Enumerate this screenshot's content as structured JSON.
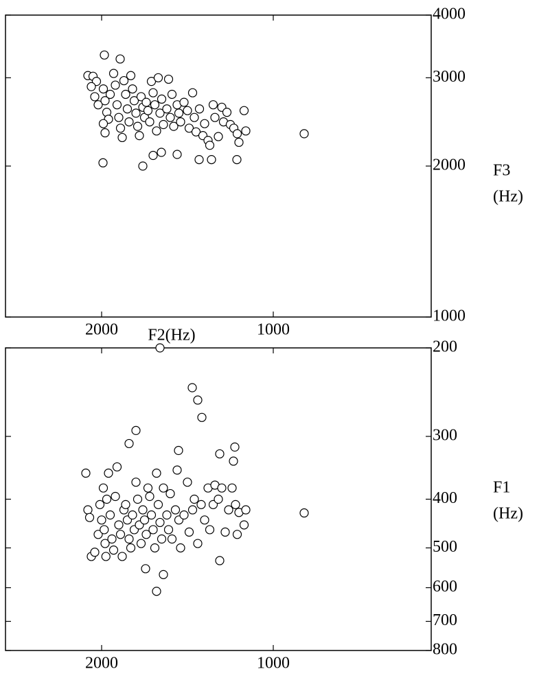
{
  "chart_data": [
    {
      "type": "scatter",
      "x_label": "F2(Hz)",
      "y_label": [
        "F3",
        "(Hz)"
      ],
      "y_log": true,
      "xlim": [
        2560,
        80
      ],
      "xticks": [
        2000,
        1000
      ],
      "ylim": [
        1000,
        4000
      ],
      "yticks": [
        1000,
        2000,
        3000,
        4000
      ],
      "x": [
        2080,
        2050,
        2030,
        2060,
        2040,
        2020,
        1990,
        1980,
        1970,
        1960,
        1990,
        1980,
        1950,
        1930,
        1920,
        1910,
        1900,
        1890,
        1880,
        1870,
        1860,
        1850,
        1840,
        1830,
        1820,
        1810,
        1800,
        1790,
        1780,
        1770,
        1760,
        1750,
        1740,
        1730,
        1720,
        1710,
        1700,
        1690,
        1680,
        1670,
        1660,
        1650,
        1640,
        1620,
        1610,
        1600,
        1590,
        1580,
        1560,
        1550,
        1540,
        1520,
        1500,
        1490,
        1470,
        1460,
        1450,
        1430,
        1410,
        1400,
        1380,
        1370,
        1350,
        1340,
        1320,
        1300,
        1290,
        1270,
        1250,
        1230,
        1210,
        1200,
        1170,
        1160,
        1984,
        1892,
        820,
        1992,
        1760,
        1212,
        1432,
        1360,
        1560,
        1652,
        1700
      ],
      "y": [
        3030,
        3020,
        2950,
        2880,
        2750,
        2650,
        2850,
        2700,
        2560,
        2480,
        2430,
        2330,
        2780,
        3060,
        2900,
        2650,
        2500,
        2380,
        2280,
        2960,
        2780,
        2600,
        2450,
        3030,
        2850,
        2700,
        2550,
        2400,
        2300,
        2750,
        2620,
        2500,
        2680,
        2580,
        2450,
        2950,
        2800,
        2650,
        2350,
        3000,
        2550,
        2720,
        2420,
        2600,
        2980,
        2500,
        2780,
        2400,
        2650,
        2550,
        2450,
        2680,
        2580,
        2380,
        2800,
        2500,
        2340,
        2600,
        2300,
        2430,
        2250,
        2200,
        2650,
        2500,
        2290,
        2620,
        2450,
        2560,
        2420,
        2380,
        2320,
        2230,
        2580,
        2350,
        3330,
        3270,
        2320,
        2030,
        2000,
        2060,
        2060,
        2060,
        2110,
        2130,
        2100
      ]
    },
    {
      "type": "scatter",
      "y_label": [
        "F1",
        "(Hz)"
      ],
      "y_log": true,
      "xlim": [
        2560,
        80
      ],
      "xticks": [
        2000,
        1000
      ],
      "ylim": [
        800,
        200
      ],
      "yticks": [
        200,
        300,
        400,
        500,
        600,
        700,
        800
      ],
      "x": [
        2080,
        2070,
        2060,
        2040,
        2020,
        2010,
        2000,
        1990,
        1985,
        1980,
        1975,
        1970,
        1960,
        1950,
        1940,
        1930,
        1920,
        1910,
        1900,
        1890,
        1880,
        1870,
        1860,
        1850,
        1840,
        1830,
        1820,
        1810,
        1800,
        1790,
        1780,
        1770,
        1760,
        1750,
        1740,
        1730,
        1720,
        1710,
        1700,
        1690,
        1680,
        1670,
        1660,
        1650,
        1640,
        1620,
        1610,
        1600,
        1590,
        1570,
        1560,
        1550,
        1540,
        1520,
        1500,
        1490,
        1470,
        1460,
        1440,
        1420,
        1400,
        1380,
        1370,
        1350,
        1340,
        1320,
        1300,
        1280,
        1260,
        1240,
        1220,
        1210,
        1200,
        1170,
        1160,
        1660,
        1472,
        1440,
        1416,
        1800,
        1840,
        2092,
        1552,
        1312,
        1224,
        1232,
        820,
        1680,
        1640,
        1744,
        1312
      ],
      "y": [
        420,
        435,
        520,
        510,
        470,
        410,
        440,
        380,
        460,
        490,
        520,
        400,
        355,
        430,
        480,
        505,
        395,
        345,
        450,
        470,
        520,
        420,
        410,
        440,
        480,
        500,
        430,
        460,
        370,
        400,
        450,
        490,
        420,
        440,
        470,
        380,
        395,
        430,
        460,
        500,
        355,
        410,
        445,
        480,
        380,
        430,
        460,
        390,
        480,
        420,
        350,
        440,
        500,
        430,
        370,
        465,
        420,
        400,
        490,
        410,
        440,
        380,
        460,
        410,
        375,
        400,
        380,
        465,
        420,
        380,
        410,
        470,
        425,
        450,
        420,
        200,
        240,
        254,
        275,
        292,
        310,
        355,
        320,
        325,
        315,
        336,
        426,
        610,
        565,
        550,
        530
      ]
    }
  ]
}
